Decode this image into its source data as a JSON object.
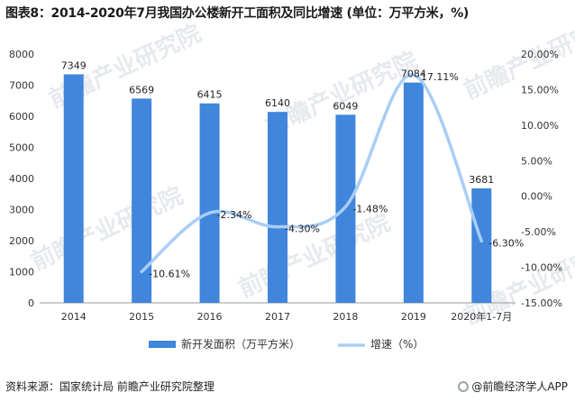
{
  "title": "图表8：2014-2020年7月我国办公楼新开工面积及同比增速 (单位：万平方米，%)",
  "source": "资料来源：国家统计局 前瞻产业研究院整理",
  "brand": "@前瞻经济学人APP",
  "watermark": "前瞻产业研究院",
  "colors": {
    "bar": "#3F86DC",
    "line": "#A9CDF5",
    "axis": "#9a9a9a"
  },
  "chart_data": {
    "type": "bar",
    "categories": [
      "2014",
      "2015",
      "2016",
      "2017",
      "2018",
      "2019",
      "2020年1-7月"
    ],
    "series": [
      {
        "name": "新开发面积（万平方米）",
        "type": "bar",
        "axis": "left",
        "values": [
          7349,
          6569,
          6415,
          6140,
          6049,
          7084,
          3681
        ]
      },
      {
        "name": "增速（%）",
        "type": "line",
        "axis": "right",
        "values": [
          null,
          -10.61,
          -2.34,
          -4.3,
          -1.48,
          17.11,
          -6.3
        ],
        "labels": [
          "",
          "-10.61%",
          "-2.34%",
          "-4.30%",
          "-1.48%",
          "17.11%",
          "-6.30%"
        ]
      }
    ],
    "left_axis": {
      "ylim": [
        0,
        8000
      ],
      "ticks": [
        "0",
        "1000",
        "2000",
        "3000",
        "4000",
        "5000",
        "6000",
        "7000",
        "8000"
      ]
    },
    "right_axis": {
      "ylim": [
        -15,
        20
      ],
      "ticks": [
        "-15.00%",
        "-10.00%",
        "-5.00%",
        "0.00%",
        "5.00%",
        "10.00%",
        "15.00%",
        "20.00%"
      ]
    },
    "legend_position": "bottom",
    "grid": false
  }
}
